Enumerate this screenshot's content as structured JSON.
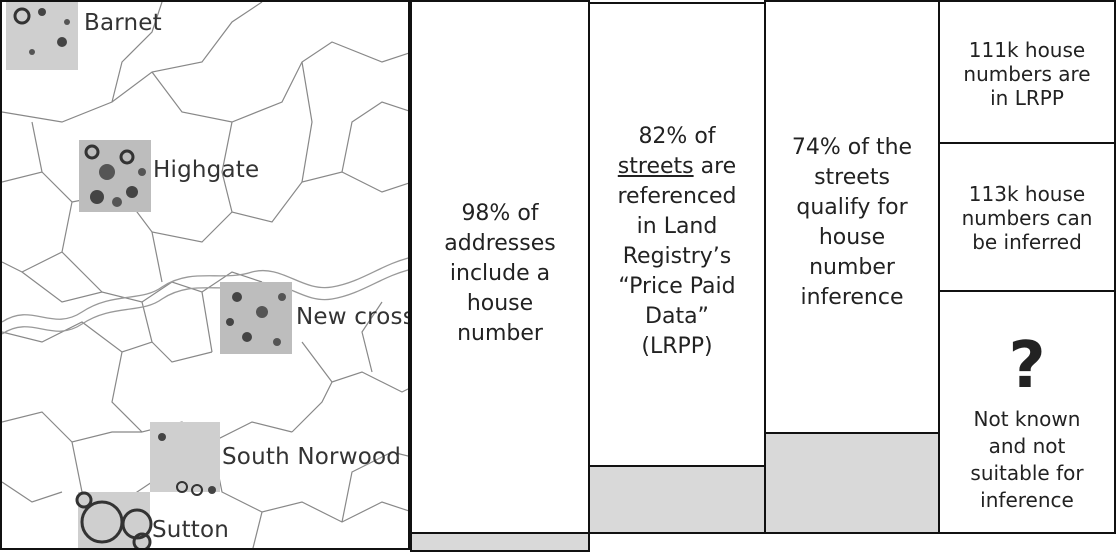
{
  "map": {
    "labels": {
      "barnet": "Barnet",
      "highgate": "Highgate",
      "new_cross": "New cross",
      "south_norwood": "South Norwood",
      "sutton": "Sutton"
    }
  },
  "columns": {
    "c1": {
      "lines": [
        "98% of",
        "addresses",
        "include a",
        "house",
        "number"
      ]
    },
    "c2": {
      "l1": "82% of",
      "l2a": "streets",
      "l2b": " are",
      "rest": [
        "referenced",
        "in Land",
        "Registry’s",
        "“Price Paid",
        "Data”",
        "(LRPP)"
      ]
    },
    "c3": {
      "lines": [
        "74% of the",
        "streets",
        "qualify for",
        "house",
        "number",
        "inference"
      ]
    },
    "c4": {
      "top": [
        "111k house",
        "numbers are",
        "in LRPP"
      ],
      "mid": [
        "113k house",
        "numbers can",
        "be inferred"
      ],
      "q": "?",
      "bottom": [
        "Not known",
        "and not",
        "suitable for",
        "inference"
      ]
    }
  }
}
